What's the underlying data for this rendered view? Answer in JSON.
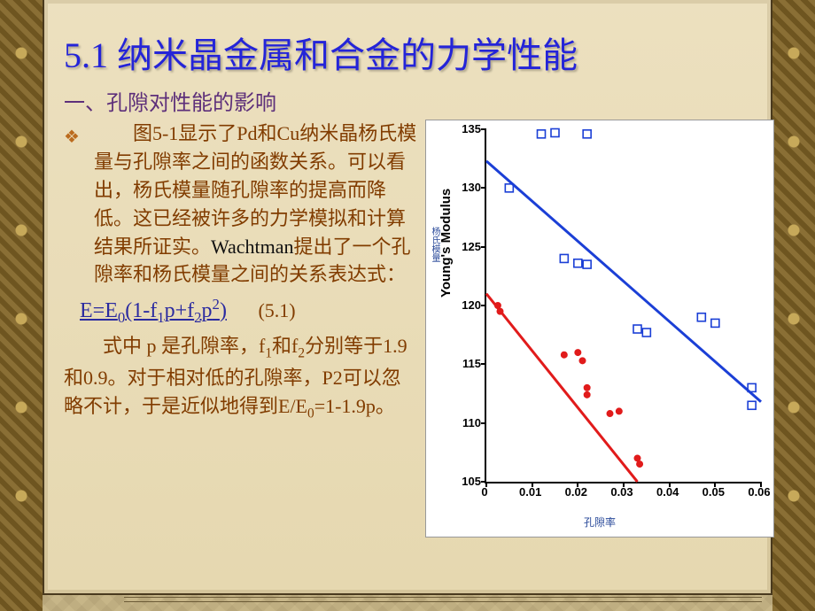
{
  "title": "5.1 纳米晶金属和合金的力学性能",
  "subheading": "一、孔隙对性能的影响",
  "paragraph1_lead": "图5-1显示了Pd和Cu纳米晶杨氏模量与孔隙率之间的函数关系。可以看出，杨氏模量随孔隙率的提高而降低。这已经被许多的力学模拟和计算结果所证实。",
  "paragraph1_tail": "提出了一个孔隙率和杨氏模量之间的关系表达式：",
  "wachtman": "Wachtman",
  "formula_plain": "E=E",
  "formula_number": "(5.1)",
  "paragraph2_a": "式中 p 是孔隙率，f",
  "paragraph2_b": "和f",
  "paragraph2_c": "分别等于1.9和0.9。对于相对低的孔隙率，P2可以忽略不计，于是近似地得到E/E",
  "paragraph2_d": "=1-1.9p。",
  "chart": {
    "type": "scatter+line",
    "background_color": "#ffffff",
    "axis_color": "#000000",
    "tick_fontsize": 13,
    "label_fontsize": 15,
    "cn_label_color": "#2a4a9a",
    "x_label_cn": "孔隙率",
    "y_label_cn": "杨氏模量",
    "y_label_en": "Young's Modulus",
    "xlim": [
      0,
      0.06
    ],
    "ylim": [
      105,
      135
    ],
    "xticks": [
      0,
      0.01,
      0.02,
      0.03,
      0.04,
      0.05,
      0.06
    ],
    "xtick_labels": [
      "0",
      "0.01",
      "0.02",
      "0.03",
      "0.04",
      "0.05",
      "0.06"
    ],
    "yticks": [
      105,
      110,
      115,
      120,
      125,
      130,
      135
    ],
    "series": [
      {
        "name": "blue",
        "marker": "open-square",
        "marker_size": 9,
        "line_color": "#1b3fd6",
        "line_width": 3,
        "marker_stroke": "#1b3fd6",
        "marker_fill": "none",
        "line": [
          [
            0.0,
            132.3
          ],
          [
            0.06,
            111.8
          ]
        ],
        "points": [
          [
            0.005,
            130.0
          ],
          [
            0.012,
            134.6
          ],
          [
            0.015,
            134.7
          ],
          [
            0.022,
            134.6
          ],
          [
            0.017,
            124.0
          ],
          [
            0.02,
            123.6
          ],
          [
            0.022,
            123.5
          ],
          [
            0.033,
            118.0
          ],
          [
            0.035,
            117.7
          ],
          [
            0.047,
            119.0
          ],
          [
            0.05,
            118.5
          ],
          [
            0.058,
            111.5
          ],
          [
            0.058,
            113.0
          ]
        ]
      },
      {
        "name": "red",
        "marker": "filled-circle",
        "marker_size": 7,
        "line_color": "#e11b1b",
        "line_width": 3,
        "marker_stroke": "#e11b1b",
        "marker_fill": "#e11b1b",
        "line": [
          [
            0.0,
            121.0
          ],
          [
            0.033,
            105.0
          ]
        ],
        "points": [
          [
            0.0025,
            120.0
          ],
          [
            0.003,
            119.5
          ],
          [
            0.017,
            115.8
          ],
          [
            0.02,
            116.0
          ],
          [
            0.021,
            115.3
          ],
          [
            0.022,
            113.0
          ],
          [
            0.022,
            112.4
          ],
          [
            0.027,
            110.8
          ],
          [
            0.029,
            111.0
          ],
          [
            0.033,
            107.0
          ],
          [
            0.0335,
            106.5
          ]
        ]
      }
    ]
  }
}
